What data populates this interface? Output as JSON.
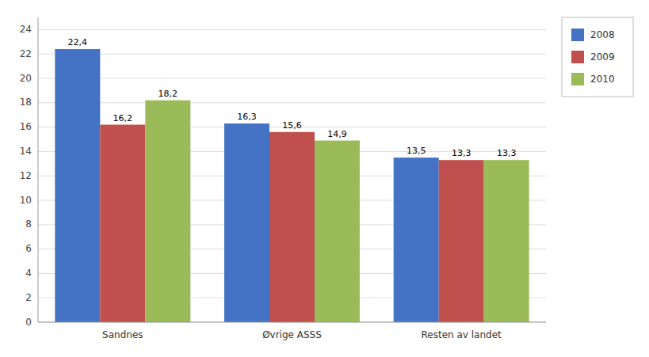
{
  "chart_data": {
    "type": "bar",
    "categories": [
      "Sandnes",
      "Øvrige ASSS",
      "Resten av landet"
    ],
    "series": [
      {
        "name": "2008",
        "color": "#4472C4",
        "values": [
          22.4,
          16.3,
          13.5
        ],
        "value_labels": [
          "22,4",
          "16,3",
          "13,5"
        ]
      },
      {
        "name": "2009",
        "color": "#C0504D",
        "values": [
          16.2,
          15.6,
          13.3
        ],
        "value_labels": [
          "16,2",
          "15,6",
          "13,3"
        ]
      },
      {
        "name": "2010",
        "color": "#9BBB59",
        "values": [
          18.2,
          14.9,
          13.3
        ],
        "value_labels": [
          "18,2",
          "14,9",
          "13,3"
        ]
      }
    ],
    "ylim": [
      0,
      25
    ],
    "yticks": [
      0,
      2,
      4,
      6,
      8,
      10,
      12,
      14,
      16,
      18,
      20,
      22,
      24
    ],
    "grid": true,
    "legend": "right",
    "data_labels": true
  }
}
